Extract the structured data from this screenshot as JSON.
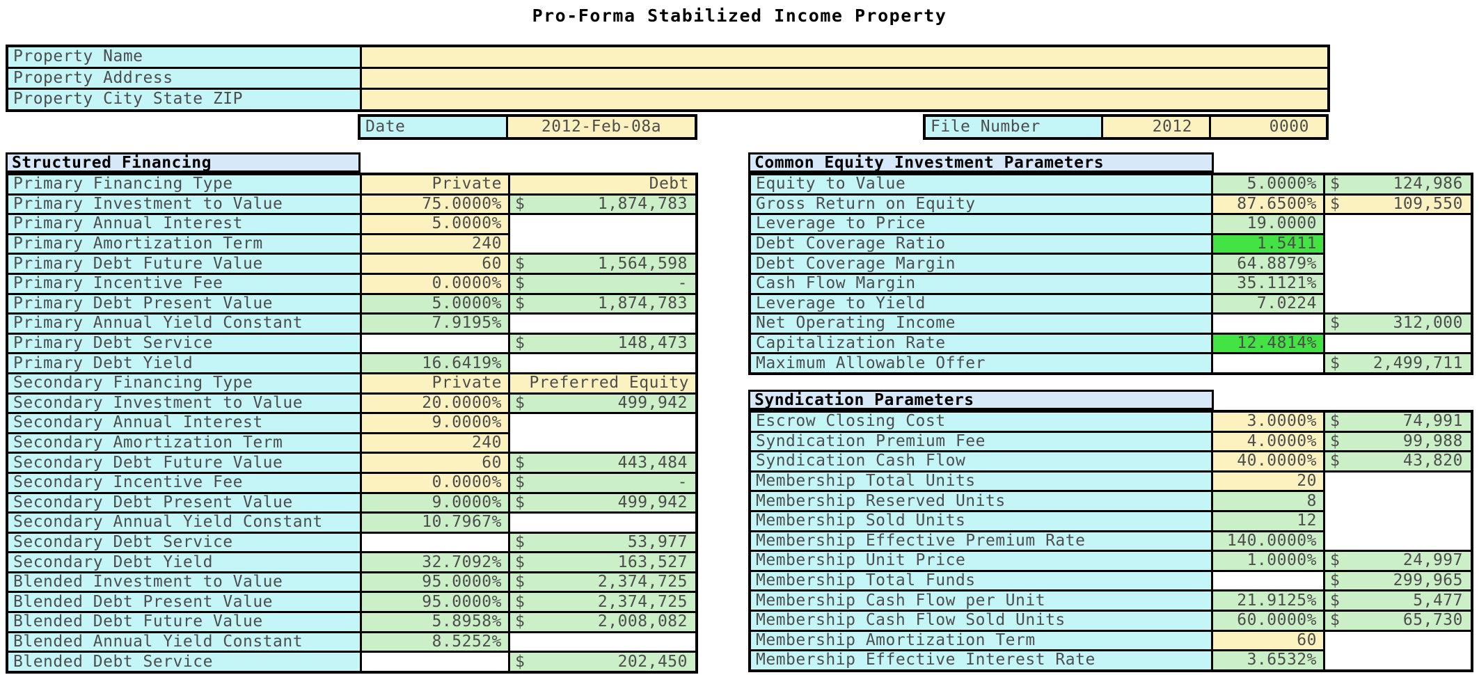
{
  "title": "Pro-Forma Stabilized Income Property",
  "currency_symbol": "$",
  "colors": {
    "label_cyan": "#C4F6F8",
    "input_yellow": "#FBF2C0",
    "computed_green": "#CBEFC6",
    "highlight_green": "#42E342",
    "section_header_blue": "#D7E9F8",
    "border_black": "#000000",
    "text_gray": "#4D4D4D"
  },
  "property_info": {
    "rows": [
      {
        "label": "Property Name",
        "value": ""
      },
      {
        "label": "Property Address",
        "value": ""
      },
      {
        "label": "Property City State ZIP",
        "value": ""
      }
    ],
    "date_label": "Date",
    "date_value": "2012-Feb-08a",
    "file_label": "File Number",
    "file_year": "2012",
    "file_number": "0000"
  },
  "tables": [
    {
      "header": "Structured Financing",
      "rows": [
        {
          "label": "Primary Financing Type",
          "c2": {
            "t": "Private",
            "bg": "y"
          },
          "c3": {
            "t": "Debt",
            "bg": "y"
          }
        },
        {
          "label": "Primary Investment to Value",
          "c2": {
            "t": "75.0000%",
            "bg": "y"
          },
          "c3": {
            "t": "1,874,783",
            "bg": "g",
            "money": true
          }
        },
        {
          "label": "Primary Annual Interest",
          "c2": {
            "t": "5.0000%",
            "bg": "y"
          },
          "c3": {
            "bg": "w",
            "span": 2
          }
        },
        {
          "label": "Primary Amortization Term",
          "c2": {
            "t": "240",
            "bg": "y"
          },
          "c3": null
        },
        {
          "label": "Primary Debt Future Value",
          "c2": {
            "t": "60",
            "bg": "y"
          },
          "c3": {
            "t": "1,564,598",
            "bg": "g",
            "money": true
          }
        },
        {
          "label": "Primary Incentive Fee",
          "c2": {
            "t": "0.0000%",
            "bg": "y"
          },
          "c3": {
            "t": "-",
            "bg": "g",
            "money": true
          }
        },
        {
          "label": "Primary Debt Present Value",
          "c2": {
            "t": "5.0000%",
            "bg": "g"
          },
          "c3": {
            "t": "1,874,783",
            "bg": "g",
            "money": true
          }
        },
        {
          "label": "Primary Annual Yield Constant",
          "c2": {
            "t": "7.9195%",
            "bg": "g"
          },
          "c3": {
            "bg": "w"
          }
        },
        {
          "label": "Primary Debt Service",
          "c2": {
            "bg": "w"
          },
          "c3": {
            "t": "148,473",
            "bg": "g",
            "money": true
          }
        },
        {
          "label": "Primary Debt Yield",
          "c2": {
            "t": "16.6419%",
            "bg": "g"
          },
          "c3": {
            "bg": "w"
          }
        },
        {
          "label": "Secondary Financing Type",
          "c2": {
            "t": "Private",
            "bg": "y"
          },
          "c3": {
            "t": "Preferred Equity",
            "bg": "y"
          }
        },
        {
          "label": "Secondary Investment to Value",
          "c2": {
            "t": "20.0000%",
            "bg": "y"
          },
          "c3": {
            "t": "499,942",
            "bg": "g",
            "money": true
          }
        },
        {
          "label": "Secondary Annual Interest",
          "c2": {
            "t": "9.0000%",
            "bg": "y"
          },
          "c3": {
            "bg": "w",
            "span": 2
          }
        },
        {
          "label": "Secondary Amortization Term",
          "c2": {
            "t": "240",
            "bg": "y"
          },
          "c3": null
        },
        {
          "label": "Secondary Debt Future Value",
          "c2": {
            "t": "60",
            "bg": "y"
          },
          "c3": {
            "t": "443,484",
            "bg": "g",
            "money": true
          }
        },
        {
          "label": "Secondary Incentive Fee",
          "c2": {
            "t": "0.0000%",
            "bg": "y"
          },
          "c3": {
            "t": "-",
            "bg": "g",
            "money": true
          }
        },
        {
          "label": "Secondary Debt Present Value",
          "c2": {
            "t": "9.0000%",
            "bg": "g"
          },
          "c3": {
            "t": "499,942",
            "bg": "g",
            "money": true
          }
        },
        {
          "label": "Secondary Annual Yield Constant",
          "c2": {
            "t": "10.7967%",
            "bg": "g"
          },
          "c3": {
            "bg": "w"
          }
        },
        {
          "label": "Secondary Debt Service",
          "c2": {
            "bg": "w"
          },
          "c3": {
            "t": "53,977",
            "bg": "g",
            "money": true
          }
        },
        {
          "label": "Secondary Debt Yield",
          "c2": {
            "t": "32.7092%",
            "bg": "g"
          },
          "c3": {
            "t": "163,527",
            "bg": "g",
            "money": true
          }
        },
        {
          "label": "Blended Investment to Value",
          "c2": {
            "t": "95.0000%",
            "bg": "g"
          },
          "c3": {
            "t": "2,374,725",
            "bg": "g",
            "money": true
          }
        },
        {
          "label": "Blended Debt Present Value",
          "c2": {
            "t": "95.0000%",
            "bg": "g"
          },
          "c3": {
            "t": "2,374,725",
            "bg": "g",
            "money": true
          }
        },
        {
          "label": "Blended Debt Future Value",
          "c2": {
            "t": "5.8958%",
            "bg": "g"
          },
          "c3": {
            "t": "2,008,082",
            "bg": "g",
            "money": true
          }
        },
        {
          "label": "Blended Annual Yield Constant",
          "c2": {
            "t": "8.5252%",
            "bg": "g"
          },
          "c3": {
            "bg": "w"
          }
        },
        {
          "label": "Blended Debt Service",
          "c2": {
            "bg": "w"
          },
          "c3": {
            "t": "202,450",
            "bg": "g",
            "money": true
          }
        }
      ]
    },
    {
      "header": "Common Equity Investment Parameters",
      "rows": [
        {
          "label": "Equity to Value",
          "c2": {
            "t": "5.0000%",
            "bg": "g"
          },
          "c3": {
            "t": "124,986",
            "bg": "g",
            "money": true
          }
        },
        {
          "label": "Gross Return on Equity",
          "c2": {
            "t": "87.6500%",
            "bg": "y"
          },
          "c3": {
            "t": "109,550",
            "bg": "y",
            "money": true
          }
        },
        {
          "label": "Leverage to Price",
          "c2": {
            "t": "19.0000",
            "bg": "g"
          },
          "c3": {
            "bg": "w",
            "span": 5
          }
        },
        {
          "label": "Debt Coverage Ratio",
          "c2": {
            "t": "1.5411",
            "bg": "b"
          },
          "c3": null
        },
        {
          "label": "Debt Coverage Margin",
          "c2": {
            "t": "64.8879%",
            "bg": "g"
          },
          "c3": null
        },
        {
          "label": "Cash Flow Margin",
          "c2": {
            "t": "35.1121%",
            "bg": "g"
          },
          "c3": null
        },
        {
          "label": "Leverage to Yield",
          "c2": {
            "t": "7.0224",
            "bg": "g"
          },
          "c3": null
        },
        {
          "label": "Net Operating Income",
          "c2": {
            "bg": "w"
          },
          "c3": {
            "t": "312,000",
            "bg": "g",
            "money": true
          }
        },
        {
          "label": "Capitalization Rate",
          "c2": {
            "t": "12.4814%",
            "bg": "b"
          },
          "c3": {
            "bg": "w"
          }
        },
        {
          "label": "Maximum Allowable Offer",
          "c2": {
            "bg": "w"
          },
          "c3": {
            "t": "2,499,711",
            "bg": "g",
            "money": true
          }
        }
      ]
    },
    {
      "header": "Syndication Parameters",
      "rows": [
        {
          "label": "Escrow Closing Cost",
          "c2": {
            "t": "3.0000%",
            "bg": "y"
          },
          "c3": {
            "t": "74,991",
            "bg": "g",
            "money": true
          }
        },
        {
          "label": "Syndication Premium Fee",
          "c2": {
            "t": "4.0000%",
            "bg": "y"
          },
          "c3": {
            "t": "99,988",
            "bg": "g",
            "money": true
          }
        },
        {
          "label": "Syndication Cash Flow",
          "c2": {
            "t": "40.0000%",
            "bg": "y"
          },
          "c3": {
            "t": "43,820",
            "bg": "g",
            "money": true
          }
        },
        {
          "label": "Membership Total Units",
          "c2": {
            "t": "20",
            "bg": "y"
          },
          "c3": {
            "bg": "w",
            "span": 4
          }
        },
        {
          "label": "Membership Reserved Units",
          "c2": {
            "t": "8",
            "bg": "g"
          },
          "c3": null
        },
        {
          "label": "Membership Sold Units",
          "c2": {
            "t": "12",
            "bg": "g"
          },
          "c3": null
        },
        {
          "label": "Membership Effective Premium Rate",
          "c2": {
            "t": "140.0000%",
            "bg": "g"
          },
          "c3": null
        },
        {
          "label": "Membership Unit Price",
          "c2": {
            "t": "1.0000%",
            "bg": "g"
          },
          "c3": {
            "t": "24,997",
            "bg": "g",
            "money": true
          }
        },
        {
          "label": "Membership Total Funds",
          "c2": {
            "bg": "w"
          },
          "c3": {
            "t": "299,965",
            "bg": "g",
            "money": true
          }
        },
        {
          "label": "Membership Cash Flow per Unit",
          "c2": {
            "t": "21.9125%",
            "bg": "g"
          },
          "c3": {
            "t": "5,477",
            "bg": "g",
            "money": true
          }
        },
        {
          "label": "Membership Cash Flow Sold Units",
          "c2": {
            "t": "60.0000%",
            "bg": "g"
          },
          "c3": {
            "t": "65,730",
            "bg": "g",
            "money": true
          }
        },
        {
          "label": "Membership Amortization Term",
          "c2": {
            "t": "60",
            "bg": "y"
          },
          "c3": {
            "bg": "w",
            "span": 2
          }
        },
        {
          "label": "Membership Effective Interest Rate",
          "c2": {
            "t": "3.6532%",
            "bg": "g"
          },
          "c3": null
        }
      ]
    }
  ]
}
